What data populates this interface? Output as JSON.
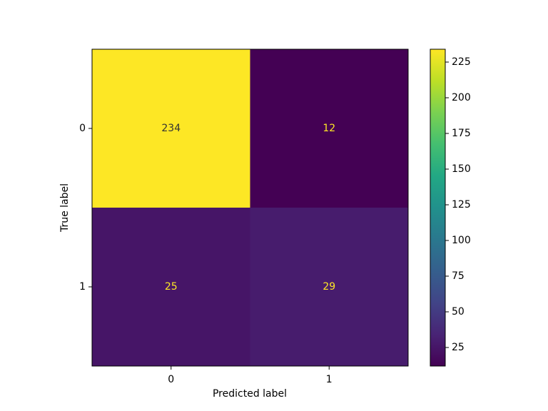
{
  "chart_data": {
    "type": "heatmap",
    "x_categories": [
      "0",
      "1"
    ],
    "y_categories": [
      "0",
      "1"
    ],
    "values": [
      [
        234,
        12
      ],
      [
        25,
        29
      ]
    ],
    "xlabel": "Predicted label",
    "ylabel": "True label",
    "colormap": "viridis",
    "clim": [
      12,
      234
    ],
    "cticks": [
      25,
      50,
      75,
      100,
      125,
      150,
      175,
      200,
      225
    ]
  }
}
